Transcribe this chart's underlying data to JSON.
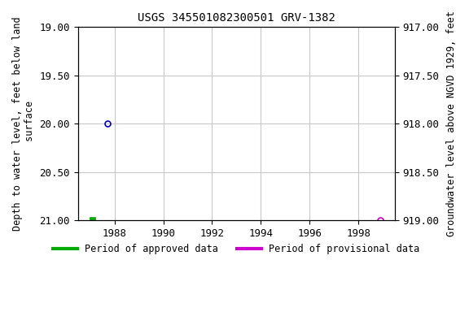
{
  "title": "USGS 345501082300501 GRV-1382",
  "left_ylabel": "Depth to water level, feet below land\n surface",
  "right_ylabel": "Groundwater level above NGVD 1929, feet",
  "ylim_left": [
    19.0,
    21.0
  ],
  "ylim_right": [
    919.0,
    917.0
  ],
  "xlim": [
    1986.5,
    1999.5
  ],
  "xticks": [
    1988,
    1990,
    1992,
    1994,
    1996,
    1998
  ],
  "yticks_left": [
    19.0,
    19.5,
    20.0,
    20.5,
    21.0
  ],
  "yticks_right": [
    919.0,
    918.5,
    918.0,
    917.5,
    917.0
  ],
  "data_points": [
    {
      "x": 1987.1,
      "y_left": 21.0,
      "color": "#00aa00",
      "marker": "s",
      "size": 5,
      "fillstyle": "full"
    },
    {
      "x": 1987.7,
      "y_left": 20.0,
      "color": "#0000cc",
      "marker": "o",
      "size": 5,
      "fillstyle": "none"
    },
    {
      "x": 1998.9,
      "y_left": 21.0,
      "color": "#cc00cc",
      "marker": "o",
      "size": 5,
      "fillstyle": "none"
    }
  ],
  "legend_items": [
    {
      "label": "Period of approved data",
      "color": "#00aa00",
      "linewidth": 3
    },
    {
      "label": "Period of provisional data",
      "color": "#cc00cc",
      "linewidth": 3
    }
  ],
  "bg_color": "#ffffff",
  "grid_color": "#c8c8c8",
  "title_fontsize": 10,
  "label_fontsize": 8.5,
  "tick_fontsize": 9
}
